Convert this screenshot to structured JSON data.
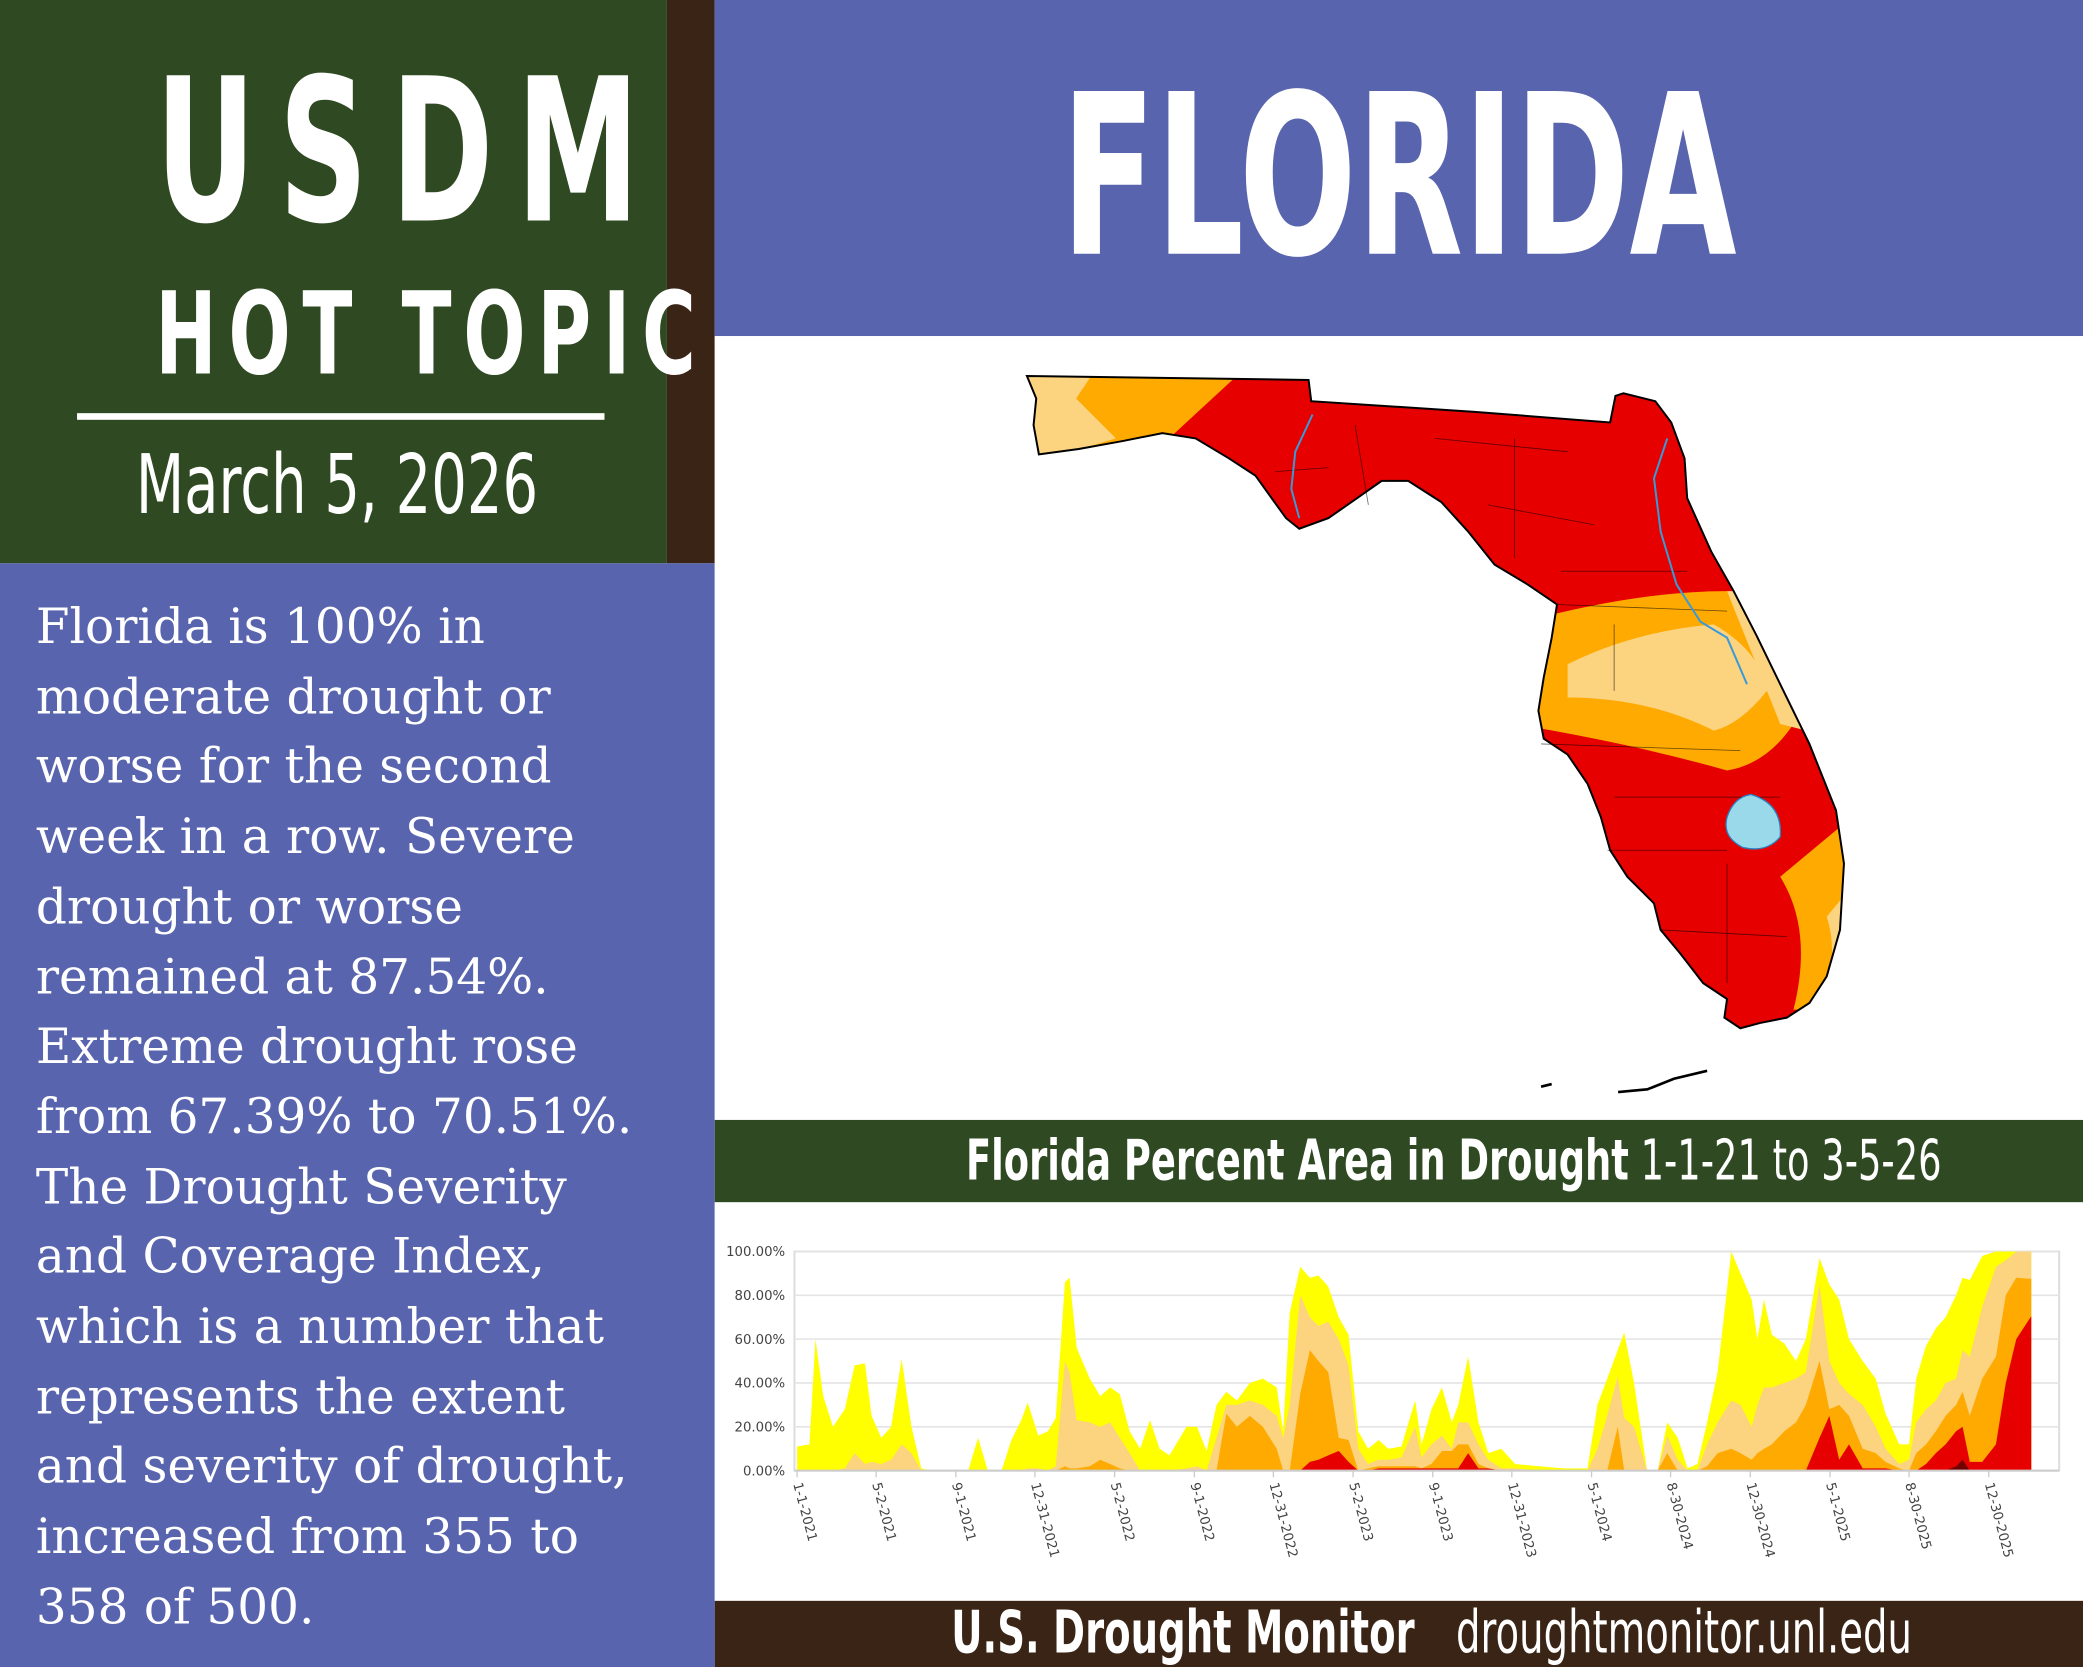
{
  "sidebar": {
    "title_line1": "USDM",
    "title_line2": "HOT TOPIC",
    "date": "March 5, 2026",
    "body_lines": [
      "Florida is 100% in",
      "moderate drought or",
      "worse for the second",
      "week in a row. Severe",
      "drought or worse",
      "remained at 87.54%.",
      "Extreme drought rose",
      "from 67.39% to 70.51%.",
      "The Drought Severity",
      "and Coverage Index,",
      "which is a number that",
      "represents the extent",
      "and severity of drought,",
      "increased from 355 to",
      "358 of 500."
    ]
  },
  "header": {
    "title": "FLORIDA"
  },
  "chart_bar": {
    "title_bold": "Florida Percent Area in Drought",
    "title_range": " 1-1-21 to 3-5-26"
  },
  "footer": {
    "brand": "U.S. Drought Monitor",
    "url": "droughtmonitor.unl.edu"
  },
  "colors": {
    "D0": "#FFFF00",
    "D1": "#FCD37F",
    "D2": "#FFAA00",
    "D3": "#E60000",
    "D4": "#730000",
    "water": "#99D9EA",
    "panel_blue": "#5864AD",
    "panel_green": "#2F4A22",
    "panel_brown": "#3A2416"
  },
  "chart_data": {
    "type": "area",
    "stacked": true,
    "title": "Florida Percent Area in Drought 1-1-21 to 3-5-26",
    "ylim": [
      0,
      100
    ],
    "y_ticks": [
      "0.00%",
      "20.00%",
      "40.00%",
      "60.00%",
      "80.00%",
      "100.00%"
    ],
    "x_ticks": [
      {
        "date": "2021-01-01",
        "label": "1-1-2021"
      },
      {
        "date": "2021-05-02",
        "label": "5-2-2021"
      },
      {
        "date": "2021-09-01",
        "label": "9-1-2021"
      },
      {
        "date": "2021-12-31",
        "label": "12-31-2021"
      },
      {
        "date": "2022-05-02",
        "label": "5-2-2022"
      },
      {
        "date": "2022-09-01",
        "label": "9-1-2022"
      },
      {
        "date": "2022-12-31",
        "label": "12-31-2022"
      },
      {
        "date": "2023-05-02",
        "label": "5-2-2023"
      },
      {
        "date": "2023-09-01",
        "label": "9-1-2023"
      },
      {
        "date": "2023-12-31",
        "label": "12-31-2023"
      },
      {
        "date": "2024-05-01",
        "label": "5-1-2024"
      },
      {
        "date": "2024-08-30",
        "label": "8-30-2024"
      },
      {
        "date": "2024-12-30",
        "label": "12-30-2024"
      },
      {
        "date": "2025-05-01",
        "label": "5-1-2025"
      },
      {
        "date": "2025-08-30",
        "label": "8-30-2025"
      },
      {
        "date": "2025-12-30",
        "label": "12-30-2025"
      }
    ],
    "grid": true,
    "series_keys": [
      "D0-D4",
      "D1-D4",
      "D2-D4",
      "D3-D4",
      "D4"
    ],
    "points": [
      [
        "2021-01-01",
        11,
        0,
        0,
        0,
        0
      ],
      [
        "2021-01-20",
        12,
        0,
        0,
        0,
        0
      ],
      [
        "2021-01-29",
        60,
        0,
        0,
        0,
        0
      ],
      [
        "2021-02-10",
        34,
        0,
        0,
        0,
        0
      ],
      [
        "2021-02-25",
        20,
        0,
        0,
        0,
        0
      ],
      [
        "2021-03-15",
        28,
        1,
        0,
        0,
        0
      ],
      [
        "2021-03-30",
        48,
        8,
        0,
        0,
        0
      ],
      [
        "2021-04-15",
        49,
        3,
        0,
        0,
        0
      ],
      [
        "2021-04-25",
        25,
        4,
        0,
        0,
        0
      ],
      [
        "2021-05-10",
        15,
        3,
        0,
        0,
        0
      ],
      [
        "2021-05-25",
        20,
        5,
        0,
        0,
        0
      ],
      [
        "2021-06-10",
        51,
        12,
        0,
        0,
        0
      ],
      [
        "2021-06-25",
        20,
        8,
        0,
        0,
        0
      ],
      [
        "2021-07-10",
        1,
        0,
        0,
        0,
        0
      ],
      [
        "2021-07-25",
        0,
        0,
        0,
        0,
        0
      ],
      [
        "2021-09-20",
        0,
        0,
        0,
        0,
        0
      ],
      [
        "2021-10-05",
        15,
        0,
        0,
        0,
        0
      ],
      [
        "2021-10-20",
        0,
        0,
        0,
        0,
        0
      ],
      [
        "2021-11-10",
        0,
        0,
        0,
        0,
        0
      ],
      [
        "2021-11-25",
        14,
        0,
        0,
        0,
        0
      ],
      [
        "2021-12-10",
        23,
        0,
        0,
        0,
        0
      ],
      [
        "2021-12-20",
        31,
        1,
        0,
        0,
        0
      ],
      [
        "2022-01-05",
        16,
        1,
        0,
        0,
        0
      ],
      [
        "2022-01-20",
        18,
        0,
        0,
        0,
        0
      ],
      [
        "2022-02-01",
        24,
        2,
        0,
        0,
        0
      ],
      [
        "2022-02-15",
        86,
        50,
        2,
        0,
        0
      ],
      [
        "2022-02-22",
        88,
        45,
        1,
        0,
        0
      ],
      [
        "2022-03-05",
        56,
        23,
        1,
        0,
        0
      ],
      [
        "2022-03-25",
        42,
        22,
        2,
        0,
        0
      ],
      [
        "2022-04-10",
        34,
        20,
        5,
        0,
        0
      ],
      [
        "2022-04-25",
        38,
        22,
        3,
        0,
        0
      ],
      [
        "2022-05-10",
        35,
        15,
        1,
        0,
        0
      ],
      [
        "2022-05-25",
        18,
        8,
        0,
        0,
        0
      ],
      [
        "2022-06-10",
        10,
        0,
        0,
        0,
        0
      ],
      [
        "2022-06-25",
        23,
        0,
        0,
        0,
        0
      ],
      [
        "2022-07-10",
        10,
        0,
        0,
        0,
        0
      ],
      [
        "2022-07-25",
        7,
        0,
        0,
        0,
        0
      ],
      [
        "2022-08-20",
        20,
        1,
        0,
        0,
        0
      ],
      [
        "2022-09-05",
        20,
        2,
        0,
        0,
        0
      ],
      [
        "2022-09-20",
        9,
        0,
        0,
        0,
        0
      ],
      [
        "2022-10-05",
        30,
        15,
        0,
        0,
        0
      ],
      [
        "2022-10-20",
        36,
        30,
        26,
        0,
        0
      ],
      [
        "2022-11-05",
        32,
        30,
        20,
        0,
        0
      ],
      [
        "2022-11-25",
        40,
        32,
        25,
        0,
        0
      ],
      [
        "2022-12-15",
        42,
        30,
        20,
        0,
        0
      ],
      [
        "2023-01-05",
        38,
        25,
        10,
        0,
        0
      ],
      [
        "2023-01-15",
        18,
        15,
        0,
        0,
        0
      ],
      [
        "2023-01-25",
        72,
        30,
        0,
        0,
        0
      ],
      [
        "2023-02-10",
        93,
        80,
        35,
        0,
        0
      ],
      [
        "2023-02-25",
        88,
        70,
        55,
        4,
        0
      ],
      [
        "2023-03-10",
        89,
        66,
        50,
        5,
        0
      ],
      [
        "2023-03-25",
        84,
        68,
        45,
        7,
        0
      ],
      [
        "2023-04-10",
        70,
        60,
        15,
        9,
        0
      ],
      [
        "2023-04-25",
        62,
        48,
        14,
        4,
        0
      ],
      [
        "2023-05-10",
        18,
        10,
        0,
        0,
        0
      ],
      [
        "2023-05-25",
        10,
        3,
        1,
        0,
        0
      ],
      [
        "2023-06-10",
        14,
        5,
        2,
        1,
        0
      ],
      [
        "2023-06-25",
        10,
        5,
        2,
        1,
        0
      ],
      [
        "2023-07-15",
        11,
        6,
        2,
        1,
        0
      ],
      [
        "2023-08-05",
        32,
        20,
        2,
        1,
        0
      ],
      [
        "2023-08-15",
        12,
        6,
        1,
        1,
        0
      ],
      [
        "2023-08-30",
        28,
        12,
        3,
        1,
        0
      ],
      [
        "2023-09-15",
        38,
        16,
        9,
        1,
        0
      ],
      [
        "2023-09-30",
        22,
        10,
        9,
        1,
        0
      ],
      [
        "2023-10-10",
        30,
        22,
        12,
        1,
        0
      ],
      [
        "2023-10-25",
        52,
        22,
        12,
        8,
        0
      ],
      [
        "2023-11-10",
        22,
        12,
        3,
        1,
        0
      ],
      [
        "2023-11-25",
        8,
        5,
        1,
        1,
        0
      ],
      [
        "2023-12-15",
        10,
        1,
        0,
        0,
        0
      ],
      [
        "2024-01-05",
        3,
        1,
        0,
        0,
        0
      ],
      [
        "2024-02-10",
        2,
        0,
        0,
        0,
        0
      ],
      [
        "2024-03-20",
        1,
        0,
        0,
        0,
        0
      ],
      [
        "2024-04-25",
        1,
        0,
        0,
        0,
        0
      ],
      [
        "2024-05-10",
        30,
        10,
        0,
        0,
        0
      ],
      [
        "2024-05-25",
        42,
        25,
        0,
        0,
        0
      ],
      [
        "2024-06-10",
        55,
        43,
        20,
        0,
        0
      ],
      [
        "2024-06-20",
        63,
        24,
        0,
        0,
        0
      ],
      [
        "2024-07-05",
        40,
        20,
        0,
        0,
        0
      ],
      [
        "2024-07-25",
        0,
        0,
        0,
        0,
        0
      ],
      [
        "2024-08-10",
        0,
        0,
        0,
        0,
        0
      ],
      [
        "2024-08-25",
        22,
        16,
        8,
        0,
        0
      ],
      [
        "2024-09-10",
        15,
        5,
        0,
        0,
        0
      ],
      [
        "2024-09-25",
        1,
        0,
        0,
        0,
        0
      ],
      [
        "2024-10-10",
        3,
        0,
        0,
        0,
        0
      ],
      [
        "2024-10-25",
        22,
        12,
        2,
        0,
        0
      ],
      [
        "2024-11-10",
        45,
        22,
        8,
        0,
        0
      ],
      [
        "2024-12-01",
        100,
        32,
        10,
        0,
        0
      ],
      [
        "2024-12-15",
        90,
        30,
        8,
        0,
        0
      ],
      [
        "2025-01-01",
        78,
        20,
        5,
        0,
        0
      ],
      [
        "2025-01-10",
        60,
        30,
        8,
        0,
        0
      ],
      [
        "2025-01-20",
        78,
        38,
        10,
        0,
        0
      ],
      [
        "2025-02-01",
        62,
        38,
        12,
        0,
        0
      ],
      [
        "2025-02-20",
        58,
        40,
        18,
        0,
        0
      ],
      [
        "2025-03-10",
        50,
        42,
        22,
        0,
        0
      ],
      [
        "2025-03-25",
        60,
        45,
        30,
        0,
        0
      ],
      [
        "2025-04-15",
        97,
        85,
        50,
        15,
        0
      ],
      [
        "2025-04-30",
        85,
        50,
        28,
        25,
        0
      ],
      [
        "2025-05-15",
        78,
        40,
        30,
        5,
        0
      ],
      [
        "2025-05-30",
        60,
        35,
        25,
        12,
        0
      ],
      [
        "2025-06-20",
        50,
        30,
        10,
        1,
        0
      ],
      [
        "2025-07-10",
        42,
        20,
        8,
        1,
        0
      ],
      [
        "2025-07-25",
        26,
        10,
        4,
        1,
        0
      ],
      [
        "2025-08-15",
        12,
        3,
        1,
        0,
        0
      ],
      [
        "2025-08-30",
        12,
        5,
        0,
        0,
        0
      ],
      [
        "2025-09-10",
        42,
        22,
        8,
        0,
        0
      ],
      [
        "2025-09-25",
        57,
        28,
        12,
        3,
        0
      ],
      [
        "2025-10-10",
        65,
        32,
        18,
        8,
        0
      ],
      [
        "2025-10-25",
        70,
        40,
        25,
        12,
        0
      ],
      [
        "2025-11-10",
        80,
        42,
        30,
        18,
        2
      ],
      [
        "2025-11-20",
        88,
        55,
        36,
        20,
        5
      ],
      [
        "2025-12-01",
        87,
        52,
        25,
        4,
        0
      ],
      [
        "2025-12-20",
        98,
        75,
        42,
        4,
        0
      ],
      [
        "2026-01-10",
        100,
        93,
        52,
        12,
        0
      ],
      [
        "2026-01-25",
        100,
        96,
        80,
        40,
        0
      ],
      [
        "2026-02-10",
        100,
        100,
        88,
        60,
        0
      ],
      [
        "2026-03-05",
        100,
        100,
        87.54,
        70.51,
        0
      ]
    ]
  }
}
